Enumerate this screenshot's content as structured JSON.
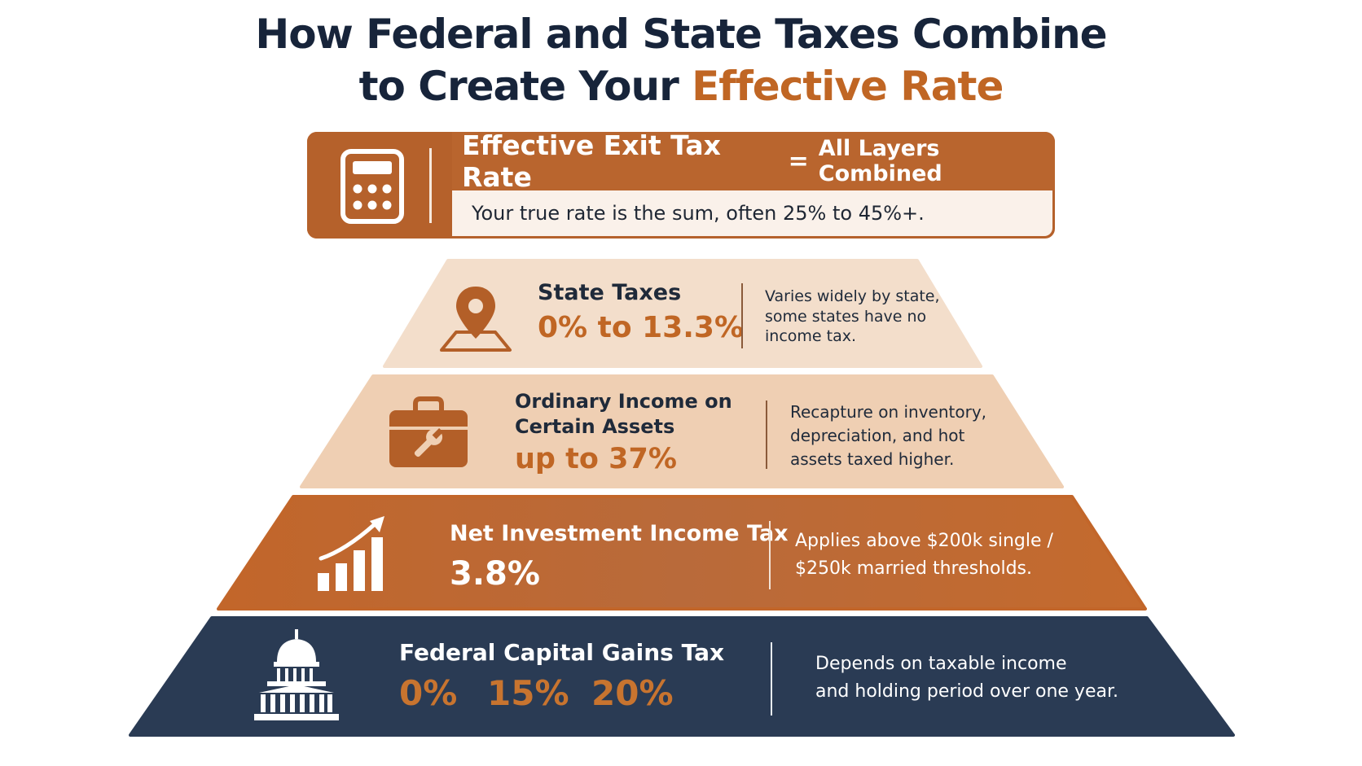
{
  "title": {
    "line1": "How Federal and State Taxes Combine",
    "line2_prefix": "to Create Your ",
    "line2_accent": "Effective Rate"
  },
  "banner": {
    "icon": "calculator-icon",
    "heading_main": "Effective Exit Tax Rate",
    "heading_eq": "=",
    "heading_rest": "All Layers Combined",
    "subtext": "Your true rate is the sum, often 25% to 45%+."
  },
  "tiers": [
    {
      "icon": "map-pin-icon",
      "title": "State Taxes",
      "rate": "0% to 13.3%",
      "description_lines": [
        "Varies widely by state,",
        "some states have no",
        "income tax."
      ]
    },
    {
      "icon": "briefcase-wrench-icon",
      "title_lines": [
        "Ordinary Income on",
        "Certain Assets"
      ],
      "rate": "up to 37%",
      "description_lines": [
        "Recapture on inventory,",
        "depreciation, and hot",
        "assets taxed higher."
      ]
    },
    {
      "icon": "bar-chart-growth-icon",
      "title": "Net Investment Income Tax",
      "rate": "3.8%",
      "description_lines": [
        "Applies above $200k single /",
        "$250k married thresholds."
      ]
    },
    {
      "icon": "capitol-building-icon",
      "title": "Federal Capital Gains Tax",
      "rates": [
        "0%",
        "15%",
        "20%"
      ],
      "description_lines": [
        "Depends on taxable income",
        "and holding period over one year."
      ]
    }
  ],
  "colors": {
    "navy": "#283a52",
    "orange": "#c06624",
    "tier1_bg": "#f3decb",
    "tier2_bg": "#efcfb3",
    "tier3_bg": "#c56a2f",
    "tier4_bg": "#2a3b54"
  }
}
